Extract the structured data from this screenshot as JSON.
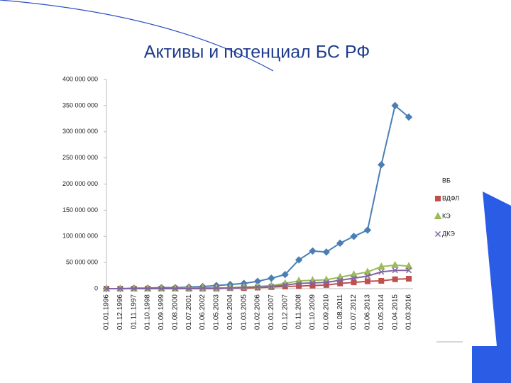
{
  "chart_data": {
    "type": "line",
    "title": "Активы и потенциал БС РФ",
    "categories": [
      "01.01.1996",
      "01.12.1996",
      "01.11.1997",
      "01.10.1998",
      "01.09.1999",
      "01.08.2000",
      "01.07.2001",
      "01.06.2002",
      "01.05.2003",
      "01.04.2004",
      "01.03.2005",
      "01.02.2006",
      "01.01.2007",
      "01.12.2007",
      "01.11.2008",
      "01.10.2009",
      "01.09.2010",
      "01.08.2011",
      "01.07.2012",
      "01.06.2013",
      "01.05.2014",
      "01.04.2015",
      "01.03.2016"
    ],
    "series": [
      {
        "name": "ВБ",
        "color": "#4a7eb4",
        "marker": "diamond",
        "values": [
          0,
          0,
          1000000,
          1000000,
          2000000,
          2000000,
          3000000,
          4000000,
          6000000,
          8000000,
          10000000,
          14000000,
          20000000,
          27000000,
          55000000,
          72000000,
          70000000,
          87000000,
          100000000,
          112000000,
          237000000,
          350000000,
          328000000
        ]
      },
      {
        "name": "ВДФЛ",
        "color": "#c0504d",
        "marker": "square",
        "values": [
          0,
          0,
          0,
          0,
          0,
          0,
          0,
          0,
          0,
          1000000,
          1000000,
          2000000,
          3000000,
          4000000,
          5000000,
          6000000,
          7000000,
          10000000,
          12000000,
          14000000,
          15000000,
          18000000,
          19000000
        ]
      },
      {
        "name": "КЭ",
        "color": "#9bbb59",
        "marker": "triangle",
        "values": [
          0,
          0,
          0,
          0,
          0,
          0,
          1000000,
          1000000,
          1000000,
          2000000,
          3000000,
          4000000,
          6000000,
          10000000,
          15000000,
          16000000,
          17000000,
          22000000,
          27000000,
          32000000,
          42000000,
          45000000,
          43000000
        ]
      },
      {
        "name": "ДКЭ",
        "color": "#8064a2",
        "marker": "x",
        "values": [
          0,
          0,
          0,
          0,
          0,
          0,
          0,
          1000000,
          1000000,
          1000000,
          2000000,
          3000000,
          4000000,
          7000000,
          10000000,
          11000000,
          12000000,
          16000000,
          20000000,
          24000000,
          32000000,
          35000000,
          35000000
        ]
      }
    ],
    "ylim": [
      0,
      400000000
    ],
    "yticks": [
      0,
      {
        "value": 50000000,
        "label": "50 000 000"
      },
      {
        "value": 100000000,
        "label": "100 000 000"
      },
      {
        "value": 150000000,
        "label": "150 000 000"
      },
      {
        "value": 200000000,
        "label": "200 000 000"
      },
      {
        "value": 250000000,
        "label": "250 000 000"
      },
      {
        "value": 300000000,
        "label": "300 000 000"
      },
      {
        "value": 350000000,
        "label": "350 000 000"
      },
      {
        "value": 400000000,
        "label": "400 000 000"
      }
    ],
    "grid": false,
    "legend": "right"
  }
}
